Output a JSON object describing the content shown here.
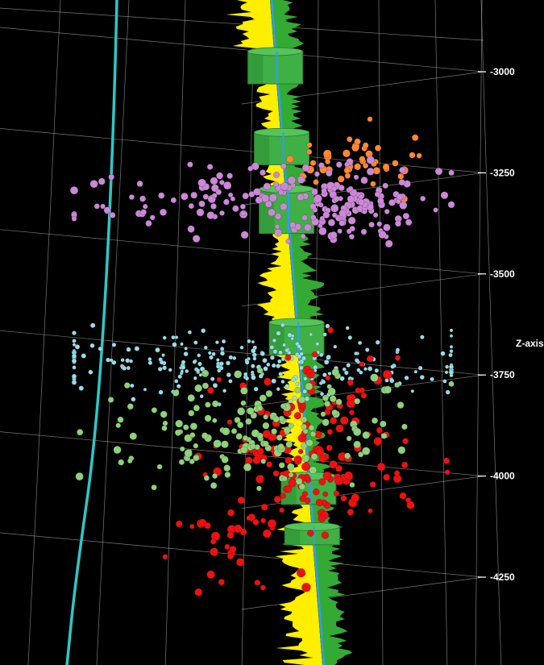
{
  "chart_data": {
    "type": "scatter",
    "view": "3d-perspective",
    "axis_title": "Z-axis",
    "zlim": [
      -4400,
      -2900
    ],
    "z_ticks": [
      {
        "value": -3000,
        "label": "-3000"
      },
      {
        "value": -3250,
        "label": "-3250"
      },
      {
        "value": -3500,
        "label": "-3500"
      },
      {
        "value": -3750,
        "label": "-3750"
      },
      {
        "value": -4000,
        "label": "-4000"
      },
      {
        "value": -4250,
        "label": "-4250"
      }
    ],
    "grid": true,
    "background": "#000000",
    "wellbore": {
      "track_color": "#2ec7c7",
      "log_fill_color": "#ffee00",
      "log_trace_color": "#33aa33",
      "cylinder_color": "#3fb045",
      "core_line_color": "#3399ff",
      "stage_intervals": [
        [
          -3030,
          -2950
        ],
        [
          -3230,
          -3150
        ],
        [
          -3400,
          -3290
        ],
        [
          -3700,
          -3620
        ],
        [
          -4070,
          -4000
        ],
        [
          -4170,
          -4125
        ]
      ]
    },
    "series": [
      {
        "color": "#ff8833",
        "z_range": [
          -3310,
          -3120
        ],
        "count": 45
      },
      {
        "color": "#cc88d8",
        "z_range": [
          -3420,
          -3230
        ],
        "count": 220
      },
      {
        "color": "#99dde8",
        "z_range": [
          -3810,
          -3630
        ],
        "count": 260
      },
      {
        "color": "#ee1111",
        "z_range": [
          -4280,
          -3650
        ],
        "count": 190
      },
      {
        "color": "#8ed17a",
        "z_range": [
          -4030,
          -3740
        ],
        "count": 170
      }
    ]
  }
}
